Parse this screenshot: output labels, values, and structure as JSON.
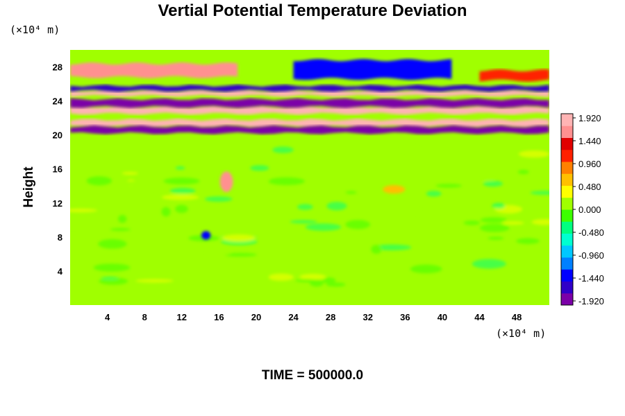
{
  "chart_data": {
    "type": "heatmap",
    "title": "Vertial Potential Temperature Deviation",
    "ylabel": "Height",
    "xlabel": "",
    "x_unit": "(×10⁴ m)",
    "y_unit": "(×10⁴ m)",
    "xlim": [
      0,
      51.5
    ],
    "ylim": [
      0,
      30
    ],
    "x_ticks": [
      "4",
      "8",
      "12",
      "16",
      "20",
      "24",
      "28",
      "32",
      "36",
      "40",
      "44",
      "48"
    ],
    "y_ticks": [
      "4",
      "8",
      "12",
      "16",
      "20",
      "24",
      "28"
    ],
    "colorbar": {
      "ticks": [
        "1.920",
        "1.440",
        "0.960",
        "0.480",
        "0.000",
        "-0.480",
        "-0.960",
        "-1.440",
        "-1.920"
      ],
      "range": [
        -2.1,
        2.1
      ],
      "colors": [
        "#7b00a8",
        "#3000c8",
        "#0000ff",
        "#0080ff",
        "#00c8ff",
        "#00ffd0",
        "#00ff80",
        "#3cff00",
        "#a0ff00",
        "#ffff00",
        "#ffc000",
        "#ff8000",
        "#ff2000",
        "#e00000",
        "#ff9090",
        "#ffb4b4"
      ]
    },
    "bands": [
      {
        "x_from": 0,
        "x_to": 51.5,
        "y_from": 21.0,
        "y_to": 21.8,
        "value": 2.05
      },
      {
        "x_from": 0,
        "x_to": 51.5,
        "y_from": 20.2,
        "y_to": 21.0,
        "value": -2.05
      },
      {
        "x_from": 0,
        "x_to": 51.5,
        "y_from": 22.5,
        "y_to": 23.3,
        "value": 2.0
      },
      {
        "x_from": 0,
        "x_to": 51.5,
        "y_from": 23.3,
        "y_to": 24.2,
        "value": -1.95
      },
      {
        "x_from": 0,
        "x_to": 51.5,
        "y_from": 24.6,
        "y_to": 25.2,
        "value": 1.9
      },
      {
        "x_from": 0,
        "x_to": 51.5,
        "y_from": 25.2,
        "y_to": 25.8,
        "value": -1.6
      },
      {
        "x_from": 0,
        "x_to": 18.0,
        "y_from": 26.8,
        "y_to": 28.4,
        "value": 1.6
      },
      {
        "x_from": 24.0,
        "x_to": 41.0,
        "y_from": 26.6,
        "y_to": 28.8,
        "value": -1.4
      },
      {
        "x_from": 44.0,
        "x_to": 51.5,
        "y_from": 26.4,
        "y_to": 27.6,
        "value": 1.2
      }
    ],
    "blobs": [
      {
        "x": 16.8,
        "y": 14.5,
        "rx": 0.7,
        "ry": 1.2,
        "value": 1.6
      },
      {
        "x": 14.6,
        "y": 8.2,
        "rx": 0.5,
        "ry": 0.5,
        "value": -1.4
      },
      {
        "x": 34.8,
        "y": 13.6,
        "rx": 1.2,
        "ry": 0.5,
        "value": 0.55
      }
    ]
  },
  "time_label": "TIME = 500000.0"
}
